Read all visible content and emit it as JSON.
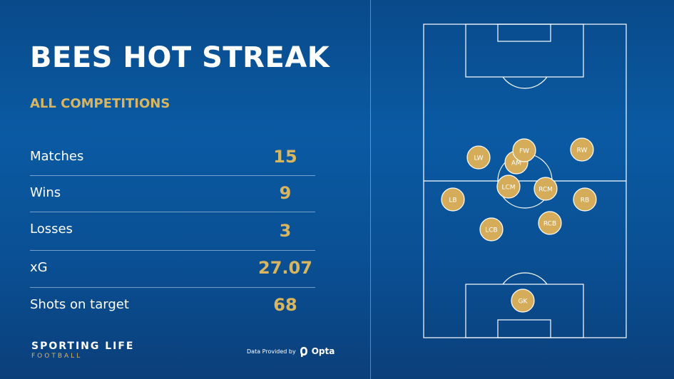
{
  "header": {
    "title": "BEES HOT STREAK",
    "subtitle": "ALL COMPETITIONS"
  },
  "stats": [
    {
      "label": "Matches",
      "value": "15"
    },
    {
      "label": "Wins",
      "value": "9"
    },
    {
      "label": "Losses",
      "value": "3"
    },
    {
      "label": "xG",
      "value": "27.07"
    },
    {
      "label": "Shots on target",
      "value": "68"
    }
  ],
  "footer": {
    "brand": "SPORTING LIFE",
    "brand_sub": "FOOTBALL",
    "provider_text": "Data Provided by",
    "provider_name": "Opta"
  },
  "formation": {
    "players": [
      "LW",
      "FW",
      "RW",
      "AM",
      "LCM",
      "RCM",
      "LB",
      "RB",
      "LCB",
      "RCB",
      "GK"
    ]
  },
  "colors": {
    "background": "#0a5aa3",
    "accent_gold": "#d8b65f",
    "player_marker": "#d4ac5a"
  }
}
